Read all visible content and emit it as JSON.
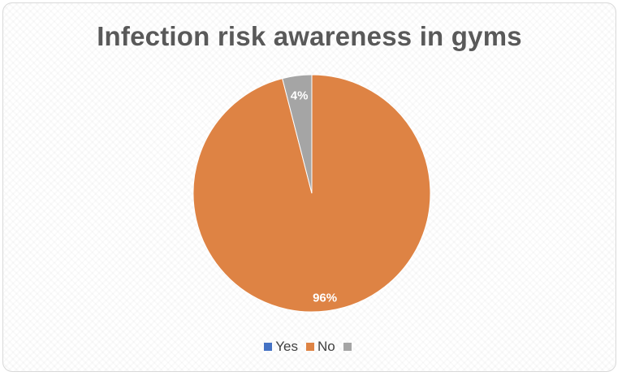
{
  "chart_data": {
    "type": "pie",
    "title": "Infection risk awareness in gyms",
    "categories": [
      "Yes",
      "No",
      ""
    ],
    "values": [
      0,
      96,
      4
    ],
    "data_labels": [
      "",
      "96%",
      "4%"
    ],
    "colors": [
      "#4472c4",
      "#de8344",
      "#a5a5a5"
    ],
    "legend_position": "bottom"
  }
}
